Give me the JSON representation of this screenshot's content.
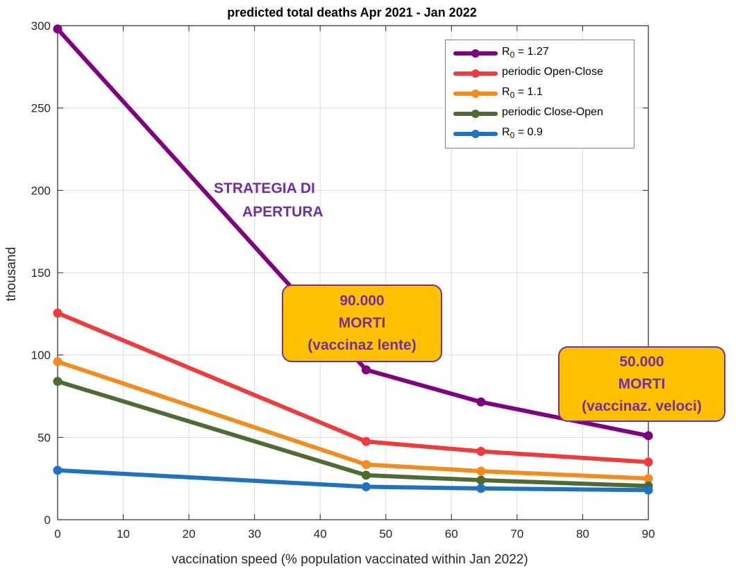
{
  "chart_data": {
    "type": "line",
    "title": "predicted total deaths Apr 2021 - Jan 2022",
    "xlabel": "vaccination speed (% population vaccinated within Jan 2022)",
    "ylabel": "thousand",
    "xlim": [
      0,
      90
    ],
    "ylim": [
      0,
      300
    ],
    "xticks": [
      0,
      10,
      20,
      30,
      40,
      50,
      60,
      70,
      80,
      90
    ],
    "yticks": [
      0,
      50,
      100,
      150,
      200,
      250,
      300
    ],
    "grid": true,
    "legend_position": "top-right",
    "x": [
      0,
      47,
      64.5,
      90
    ],
    "series": [
      {
        "name": "R0 = 1.27",
        "legend_main": "R",
        "legend_sub": "0",
        "legend_rest": " = 1.27",
        "color": "#800080",
        "values": [
          298,
          91,
          71.5,
          51
        ]
      },
      {
        "name": "periodic Open-Close",
        "legend_main": "periodic Open-Close",
        "legend_sub": "",
        "legend_rest": "",
        "color": "#ee3b3b",
        "values": [
          125.5,
          47.5,
          41.5,
          35
        ]
      },
      {
        "name": "R0 = 1.1",
        "legend_main": "R",
        "legend_sub": "0",
        "legend_rest": " = 1.1",
        "color": "#f28c1e",
        "values": [
          96,
          33.5,
          29.5,
          25
        ]
      },
      {
        "name": "periodic Close-Open",
        "legend_main": "periodic Close-Open",
        "legend_sub": "",
        "legend_rest": "",
        "color": "#4e6b34",
        "values": [
          84,
          27,
          24,
          20.5
        ]
      },
      {
        "name": "R0 = 0.9",
        "legend_main": "R",
        "legend_sub": "0",
        "legend_rest": " = 0.9",
        "color": "#1f72c0",
        "values": [
          30,
          20,
          19,
          18
        ]
      }
    ],
    "annotations": {
      "strategy_line1": "STRATEGIA DI",
      "strategy_line2": "APERTURA",
      "callout_slow": {
        "line1": "90.000",
        "line2": "MORTI",
        "line3": "(vaccinaz lente)"
      },
      "callout_fast": {
        "line1": "50.000",
        "line2": "MORTI",
        "line3": "(vaccinaz. veloci)"
      }
    }
  }
}
